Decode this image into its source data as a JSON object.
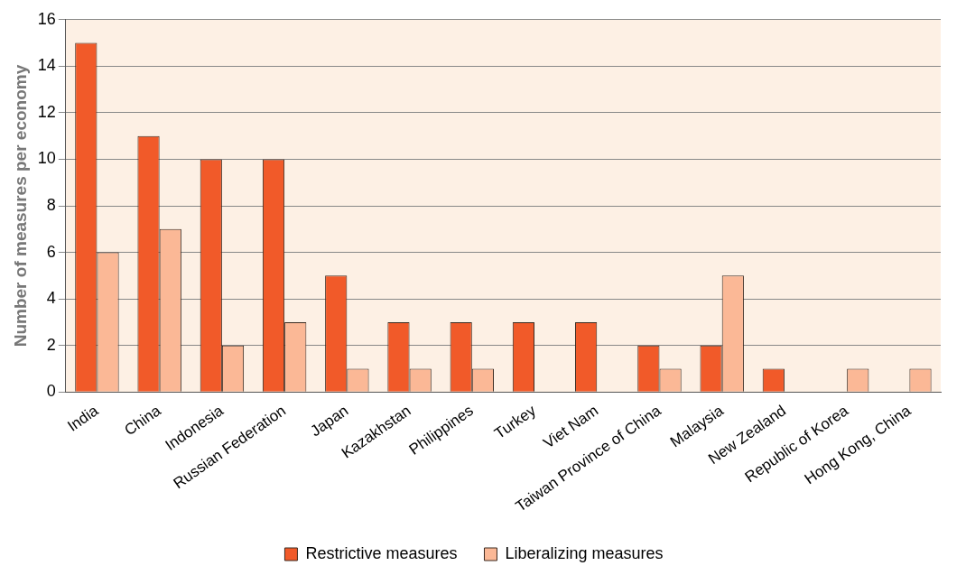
{
  "chart_data": {
    "type": "bar",
    "ylabel": "Number of measures per economy",
    "categories": [
      "India",
      "China",
      "Indonesia",
      "Russian Federation",
      "Japan",
      "Kazakhstan",
      "Philippines",
      "Turkey",
      "Viet Nam",
      "Taiwan Province of China",
      "Malaysia",
      "New Zealand",
      "Republic of Korea",
      "Hong Kong, China"
    ],
    "series": [
      {
        "name": "Restrictive measures",
        "color": "#f15a29",
        "values": [
          15,
          11,
          10,
          10,
          5,
          3,
          3,
          3,
          3,
          2,
          2,
          1,
          null,
          null
        ]
      },
      {
        "name": "Liberalizing measures",
        "color": "#fbb896",
        "values": [
          6,
          7,
          2,
          3,
          1,
          1,
          1,
          null,
          null,
          1,
          5,
          null,
          1,
          1
        ]
      }
    ],
    "ylim": [
      0,
      16
    ],
    "yticks": [
      0,
      2,
      4,
      6,
      8,
      10,
      12,
      14,
      16
    ],
    "grid": "y",
    "legend": "bottom"
  }
}
